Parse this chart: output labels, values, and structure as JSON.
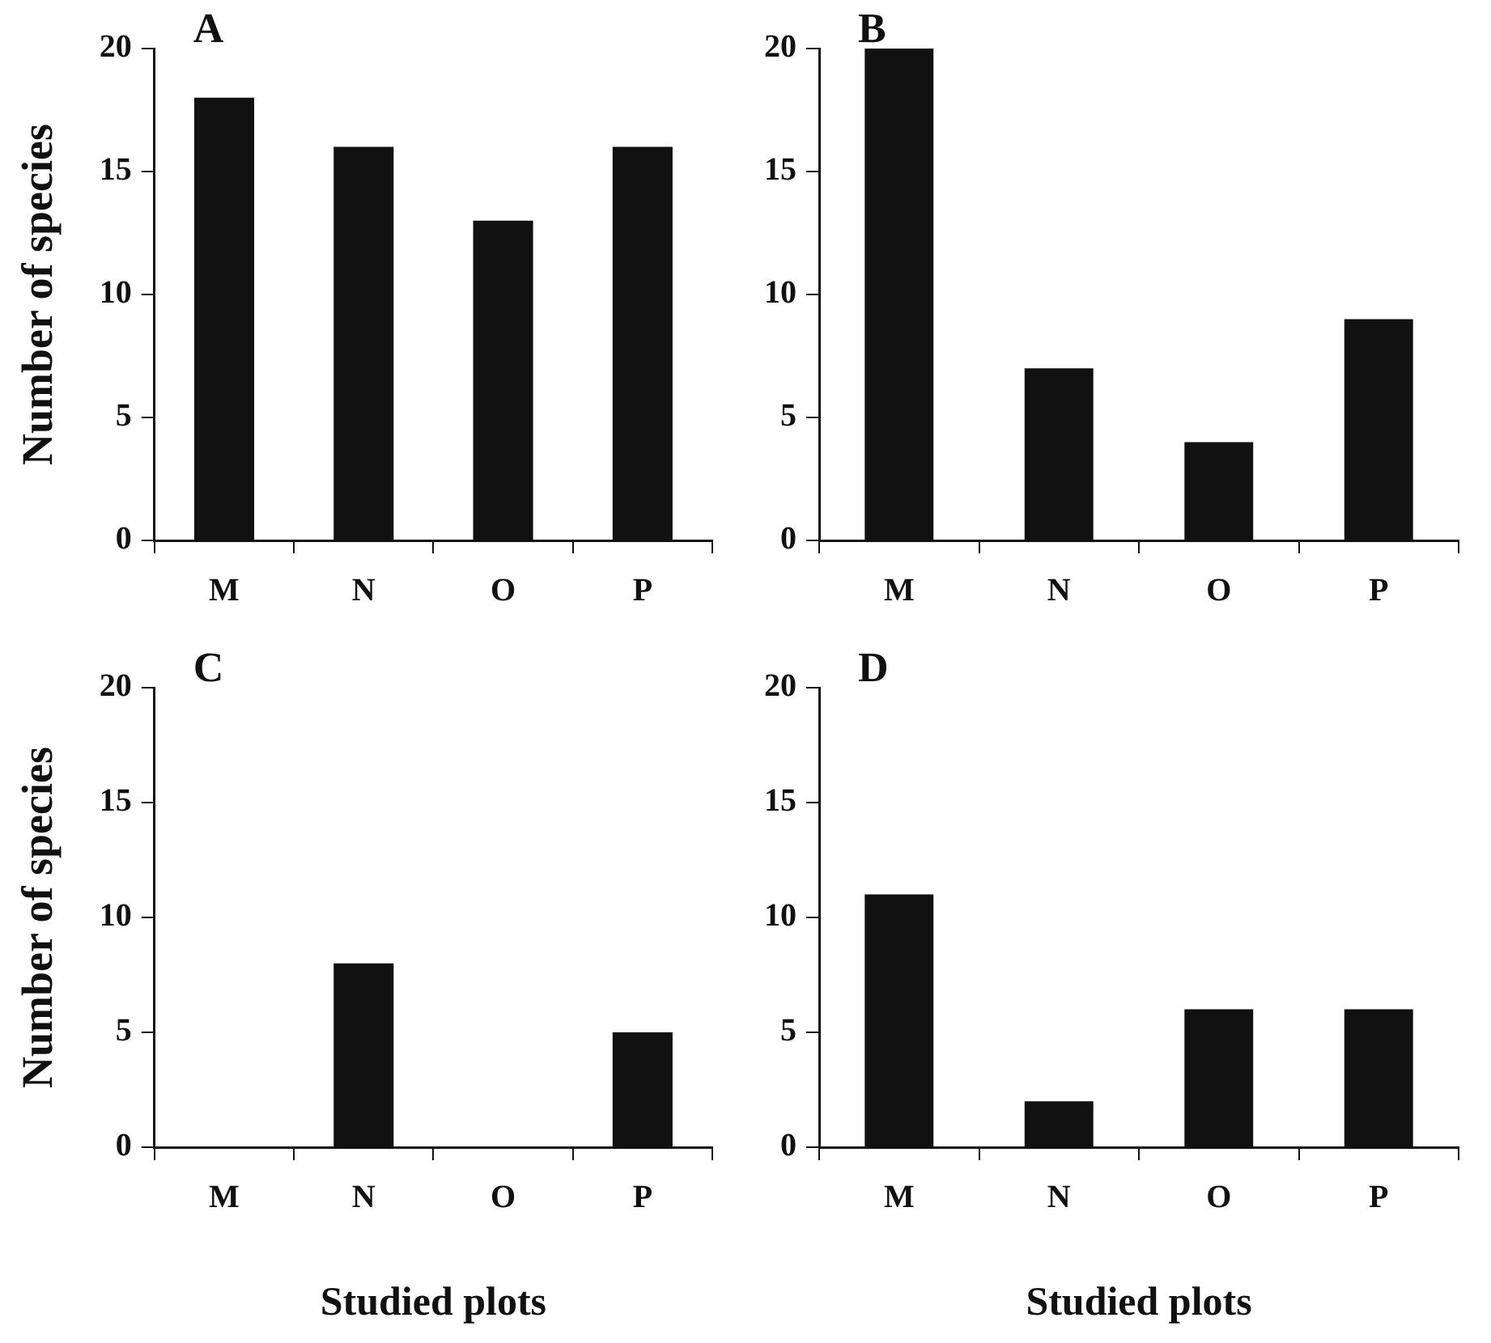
{
  "chart_data": [
    {
      "type": "bar",
      "title": "A",
      "ylabel": "Number of species",
      "categories": [
        "M",
        "N",
        "O",
        "P"
      ],
      "values": [
        18,
        16,
        13,
        16
      ],
      "color": "#111111",
      "ylim": [
        0,
        20
      ],
      "yticks": [
        0,
        5,
        10,
        15,
        20
      ],
      "grid": false,
      "legend": false
    },
    {
      "type": "bar",
      "title": "B",
      "categories": [
        "M",
        "N",
        "O",
        "P"
      ],
      "values": [
        20,
        7,
        4,
        9
      ],
      "color": "#111111",
      "ylim": [
        0,
        20
      ],
      "yticks": [
        0,
        5,
        10,
        15,
        20
      ],
      "grid": false,
      "legend": false
    },
    {
      "type": "bar",
      "title": "C",
      "ylabel": "Number of species",
      "xlabel": "Studied plots",
      "categories": [
        "M",
        "N",
        "O",
        "P"
      ],
      "values": [
        0,
        8,
        0,
        5
      ],
      "color": "#111111",
      "ylim": [
        0,
        20
      ],
      "yticks": [
        0,
        5,
        10,
        15,
        20
      ],
      "grid": false,
      "legend": false
    },
    {
      "type": "bar",
      "title": "D",
      "xlabel": "Studied plots",
      "categories": [
        "M",
        "N",
        "O",
        "P"
      ],
      "values": [
        11,
        2,
        6,
        6
      ],
      "color": "#111111",
      "ylim": [
        0,
        20
      ],
      "yticks": [
        0,
        5,
        10,
        15,
        20
      ],
      "grid": false,
      "legend": false
    }
  ]
}
